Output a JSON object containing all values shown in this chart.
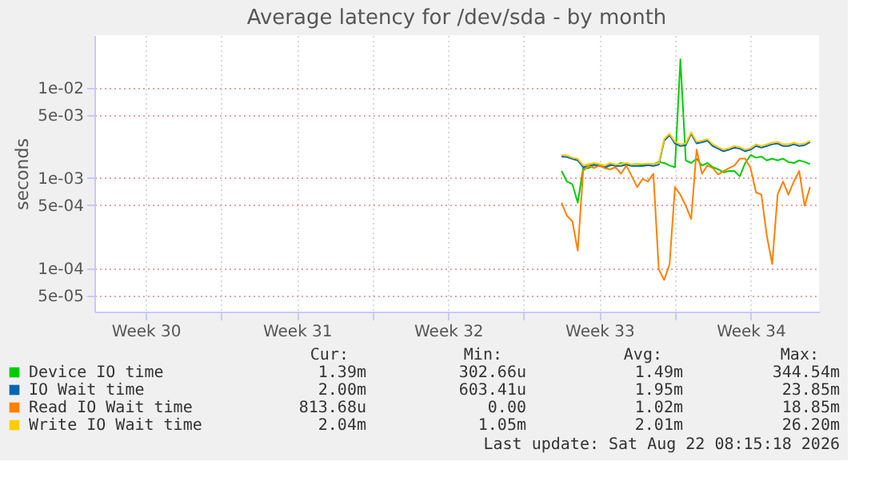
{
  "chart_data": {
    "type": "line",
    "title": "Average latency for /dev/sda - by month",
    "ylabel": "seconds",
    "x": [
      "2026-08-10T18:00",
      "2026-08-11T00:00",
      "2026-08-11T06:00",
      "2026-08-11T12:00",
      "2026-08-11T18:00",
      "2026-08-12T00:00",
      "2026-08-12T06:00",
      "2026-08-12T12:00",
      "2026-08-12T18:00",
      "2026-08-13T00:00",
      "2026-08-13T06:00",
      "2026-08-13T12:00",
      "2026-08-13T18:00",
      "2026-08-14T00:00",
      "2026-08-14T06:00",
      "2026-08-14T12:00",
      "2026-08-14T18:00",
      "2026-08-15T00:00",
      "2026-08-15T06:00",
      "2026-08-15T12:00",
      "2026-08-15T18:00",
      "2026-08-16T00:00",
      "2026-08-16T06:00",
      "2026-08-16T12:00",
      "2026-08-16T18:00",
      "2026-08-17T00:00",
      "2026-08-17T06:00",
      "2026-08-17T12:00",
      "2026-08-17T18:00",
      "2026-08-18T00:00",
      "2026-08-18T06:00",
      "2026-08-18T12:00",
      "2026-08-18T18:00",
      "2026-08-19T00:00",
      "2026-08-19T06:00",
      "2026-08-19T12:00",
      "2026-08-19T18:00",
      "2026-08-20T00:00",
      "2026-08-20T06:00",
      "2026-08-20T12:00",
      "2026-08-20T18:00",
      "2026-08-21T00:00",
      "2026-08-21T06:00",
      "2026-08-21T12:00",
      "2026-08-21T18:00",
      "2026-08-22T00:00",
      "2026-08-22T06:00"
    ],
    "xlim": [
      "2026-07-20T03:00",
      "2026-08-22T16:00"
    ],
    "xticks": [
      {
        "value": "2026-07-22T12:00",
        "label": "Week 30"
      },
      {
        "value": "2026-07-26T00:00",
        "label": null
      },
      {
        "value": "2026-07-29T12:00",
        "label": "Week 31"
      },
      {
        "value": "2026-08-02T00:00",
        "label": null
      },
      {
        "value": "2026-08-05T12:00",
        "label": "Week 32"
      },
      {
        "value": "2026-08-09T00:00",
        "label": null
      },
      {
        "value": "2026-08-12T12:00",
        "label": "Week 33"
      },
      {
        "value": "2026-08-16T00:00",
        "label": null
      },
      {
        "value": "2026-08-19T12:00",
        "label": "Week 34"
      }
    ],
    "ylim": [
      3.3e-05,
      0.038
    ],
    "yticks": [
      {
        "value": 5e-05,
        "label": "5e-05"
      },
      {
        "value": 0.0001,
        "label": "1e-04"
      },
      {
        "value": 0.0005,
        "label": "5e-04"
      },
      {
        "value": 0.001,
        "label": "1e-03"
      },
      {
        "value": 0.005,
        "label": "5e-03"
      },
      {
        "value": 0.01,
        "label": "1e-02"
      }
    ],
    "log": "y",
    "grid": true,
    "legend": "bottom",
    "series": [
      {
        "name": "Device IO time",
        "color": "#00cc00",
        "values": [
          0.00119,
          0.00091,
          0.00085,
          0.00053,
          0.00128,
          0.00128,
          0.00137,
          0.0014,
          0.00128,
          0.00137,
          0.00137,
          0.00146,
          0.00142,
          0.0014,
          0.00142,
          0.00138,
          0.0014,
          0.00142,
          0.0015,
          0.00146,
          0.00137,
          0.00131,
          0.0205,
          0.00156,
          0.00146,
          0.00163,
          0.00137,
          0.00146,
          0.00131,
          0.00124,
          0.00115,
          0.00119,
          0.00119,
          0.00104,
          0.00146,
          0.00179,
          0.00167,
          0.00172,
          0.00156,
          0.00163,
          0.00156,
          0.00163,
          0.0015,
          0.00146,
          0.00156,
          0.0015,
          0.00142
        ]
      },
      {
        "name": "IO Wait time",
        "color": "#0066b3",
        "values": [
          0.00172,
          0.0017,
          0.00162,
          0.00156,
          0.00131,
          0.00135,
          0.0014,
          0.00135,
          0.00131,
          0.0014,
          0.00135,
          0.00135,
          0.0014,
          0.00135,
          0.00135,
          0.00135,
          0.00138,
          0.00135,
          0.0014,
          0.00258,
          0.00296,
          0.0024,
          0.00225,
          0.0023,
          0.00308,
          0.0024,
          0.00248,
          0.00258,
          0.00225,
          0.0021,
          0.00197,
          0.00205,
          0.00216,
          0.0021,
          0.00197,
          0.00205,
          0.00225,
          0.00216,
          0.00225,
          0.00235,
          0.0024,
          0.00225,
          0.00225,
          0.00235,
          0.00225,
          0.0023,
          0.00248
        ]
      },
      {
        "name": "Read IO Wait time",
        "color": "#ff8000",
        "values": [
          0.00053,
          0.00038,
          0.00033,
          0.000156,
          0.00119,
          0.00137,
          0.00128,
          0.00137,
          0.00128,
          0.00124,
          0.00131,
          0.00111,
          0.00137,
          0.00104,
          0.00079,
          0.00097,
          0.00091,
          0.00111,
          9.7e-05,
          7.4e-05,
          0.000111,
          0.00079,
          0.00065,
          0.00049,
          0.00035,
          0.00205,
          0.00111,
          0.00137,
          0.00128,
          0.00109,
          0.00119,
          0.00128,
          0.00137,
          0.00163,
          0.00163,
          0.00128,
          0.00069,
          0.00065,
          0.00023,
          0.000111,
          0.00065,
          0.00091,
          0.00065,
          0.00091,
          0.00119,
          0.00049,
          0.00079
        ]
      },
      {
        "name": "Write IO Wait time",
        "color": "#ffcc00",
        "values": [
          0.00179,
          0.00177,
          0.00167,
          0.00163,
          0.00137,
          0.00142,
          0.00146,
          0.00142,
          0.00137,
          0.00146,
          0.0014,
          0.00142,
          0.00146,
          0.0014,
          0.00142,
          0.00142,
          0.00144,
          0.00142,
          0.00146,
          0.00269,
          0.00308,
          0.00251,
          0.00235,
          0.0024,
          0.0032,
          0.00251,
          0.00258,
          0.00269,
          0.00235,
          0.00219,
          0.00205,
          0.00213,
          0.00225,
          0.00219,
          0.00205,
          0.00213,
          0.00235,
          0.00225,
          0.00235,
          0.00245,
          0.00251,
          0.00235,
          0.00235,
          0.00245,
          0.00235,
          0.0024,
          0.00258
        ]
      }
    ],
    "annotations": [
      "Cur:",
      "Min:",
      "Avg:",
      "Max:",
      "1.39m",
      "302.66u",
      "1.49m",
      "344.54m",
      "2.00m",
      "603.41u",
      "1.95m",
      "23.85m",
      "813.68u",
      "0.00",
      "1.02m",
      "18.85m",
      "2.04m",
      "1.05m",
      "2.01m",
      "26.20m",
      "Last update: Sat Aug 22 08:15:18 2026"
    ]
  }
}
